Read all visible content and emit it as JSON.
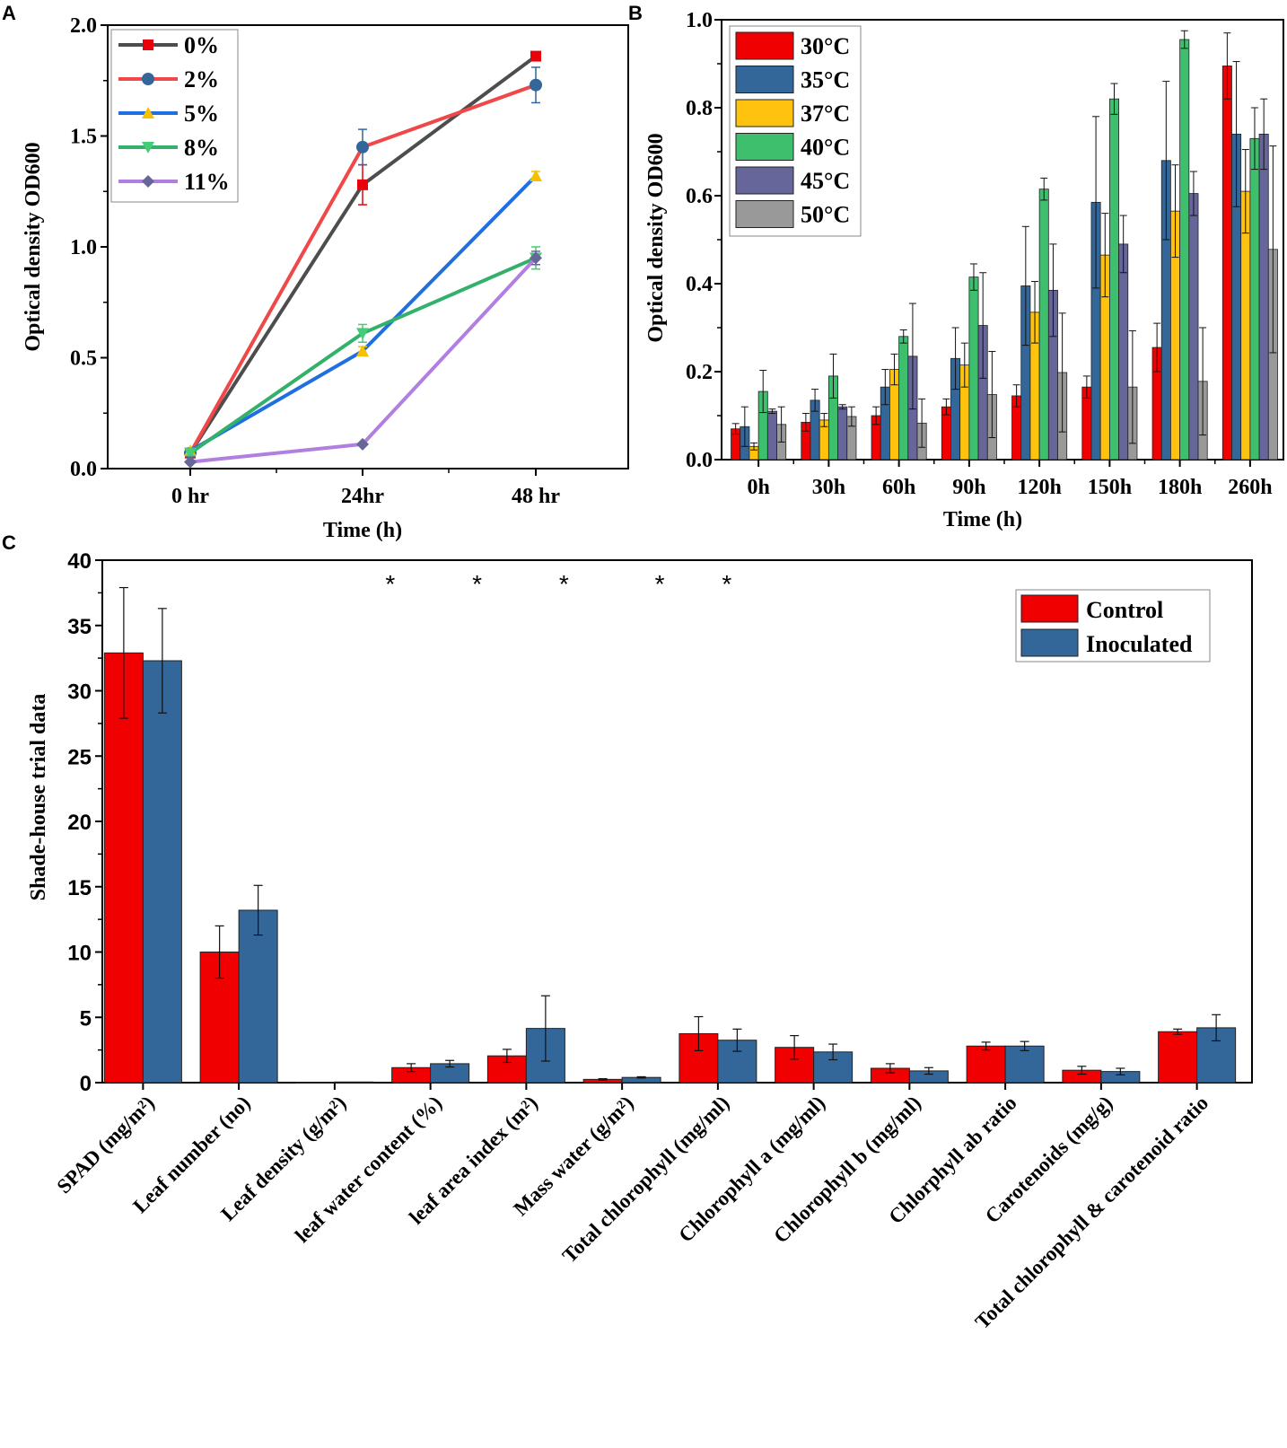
{
  "chart_data": [
    {
      "panel": "A",
      "type": "line",
      "title": "",
      "xlabel": "Time (h)",
      "ylabel": "Optical density OD600",
      "categories": [
        "0 hr",
        "24hr",
        "48 hr"
      ],
      "ylim": [
        0,
        2.0
      ],
      "yticks": [
        "0.0",
        "0.5",
        "1.0",
        "1.5",
        "2.0"
      ],
      "legend_position": "top-left",
      "series": [
        {
          "name": "0%",
          "line_color": "#4d4d4d",
          "marker_color": "#e8000b",
          "marker": "square",
          "values": [
            0.07,
            1.28,
            1.86
          ],
          "errors": [
            0.01,
            0.09,
            0.0
          ]
        },
        {
          "name": "2%",
          "line_color": "#f04848",
          "marker_color": "#336699",
          "marker": "circle",
          "values": [
            0.07,
            1.45,
            1.73
          ],
          "errors": [
            0.01,
            0.08,
            0.08
          ]
        },
        {
          "name": "5%",
          "line_color": "#1f6fe0",
          "marker_color": "#f5c000",
          "marker": "triangle-up",
          "values": [
            0.08,
            0.53,
            1.32
          ],
          "errors": [
            0.01,
            0.02,
            0.02
          ]
        },
        {
          "name": "8%",
          "line_color": "#33b06a",
          "marker_color": "#44cc77",
          "marker": "triangle-down",
          "values": [
            0.07,
            0.61,
            0.95
          ],
          "errors": [
            0.01,
            0.04,
            0.05
          ]
        },
        {
          "name": "11%",
          "line_color": "#b07fe0",
          "marker_color": "#666699",
          "marker": "diamond",
          "values": [
            0.03,
            0.11,
            0.95
          ],
          "errors": [
            0.0,
            0.0,
            0.03
          ]
        }
      ]
    },
    {
      "panel": "B",
      "type": "bar",
      "title": "",
      "xlabel": "Time (h)",
      "ylabel": "Optical density OD600",
      "categories": [
        "0h",
        "30h",
        "60h",
        "90h",
        "120h",
        "150h",
        "180h",
        "260h"
      ],
      "ylim": [
        0,
        1.0
      ],
      "yticks": [
        "0.0",
        "0.2",
        "0.4",
        "0.6",
        "0.8",
        "1.0"
      ],
      "legend_position": "top-left",
      "series": [
        {
          "name": "30°C",
          "color": "#f00000",
          "values": [
            0.07,
            0.085,
            0.1,
            0.12,
            0.145,
            0.165,
            0.255,
            0.895
          ],
          "errors": [
            0.012,
            0.02,
            0.02,
            0.018,
            0.025,
            0.025,
            0.055,
            0.075
          ]
        },
        {
          "name": "35°C",
          "color": "#336699",
          "values": [
            0.075,
            0.135,
            0.165,
            0.23,
            0.395,
            0.585,
            0.68,
            0.74
          ],
          "errors": [
            0.045,
            0.025,
            0.04,
            0.07,
            0.135,
            0.195,
            0.18,
            0.165
          ]
        },
        {
          "name": "37°C",
          "color": "#ffc20e",
          "values": [
            0.03,
            0.09,
            0.205,
            0.215,
            0.335,
            0.465,
            0.565,
            0.61
          ],
          "errors": [
            0.008,
            0.015,
            0.035,
            0.05,
            0.07,
            0.095,
            0.105,
            0.095
          ]
        },
        {
          "name": "40°C",
          "color": "#3dbf6e",
          "values": [
            0.155,
            0.19,
            0.28,
            0.415,
            0.615,
            0.82,
            0.955,
            0.73
          ],
          "errors": [
            0.048,
            0.05,
            0.015,
            0.03,
            0.025,
            0.035,
            0.02,
            0.07
          ]
        },
        {
          "name": "45°C",
          "color": "#66669a",
          "values": [
            0.11,
            0.12,
            0.235,
            0.305,
            0.385,
            0.49,
            0.605,
            0.74
          ],
          "errors": [
            0.005,
            0.005,
            0.12,
            0.12,
            0.105,
            0.065,
            0.05,
            0.08
          ]
        },
        {
          "name": "50°C",
          "color": "#999999",
          "values": [
            0.08,
            0.098,
            0.083,
            0.148,
            0.198,
            0.165,
            0.178,
            0.478
          ],
          "errors": [
            0.04,
            0.022,
            0.055,
            0.098,
            0.135,
            0.128,
            0.122,
            0.235
          ]
        }
      ]
    },
    {
      "panel": "C",
      "type": "bar",
      "title": "",
      "xlabel": "",
      "ylabel": "Shade-house trial data",
      "categories": [
        "SPAD (mg/m²)",
        "Leaf number (no)",
        "Leaf density (g/m²)",
        "leaf water content (%)",
        "leaf area index (m²)",
        "Mass water (g/m²)",
        "Total chlorophyll (mg/ml)",
        "Chlorophyll a (mg/ml)",
        "Chlorophyll b (mg/ml)",
        "Chlorphyll ab ratio",
        "Carotenoids (mg/g)",
        "Total chlorophyll &  carotenoid ratio"
      ],
      "ylim": [
        0,
        40
      ],
      "yticks": [
        "0",
        "5",
        "10",
        "15",
        "20",
        "25",
        "30",
        "35",
        "40"
      ],
      "legend_position": "top-right",
      "significance_marks": [
        "",
        "",
        "*",
        "*",
        "*",
        "*",
        "*",
        "",
        "",
        "",
        "",
        ""
      ],
      "series": [
        {
          "name": "Control",
          "color": "#f00000",
          "values": [
            32.9,
            10.0,
            0.02,
            1.15,
            2.05,
            0.25,
            3.75,
            2.7,
            1.1,
            2.8,
            0.95,
            3.9
          ],
          "errors": [
            5.0,
            2.0,
            0.0,
            0.3,
            0.5,
            0.05,
            1.3,
            0.9,
            0.35,
            0.3,
            0.3,
            0.2
          ]
        },
        {
          "name": "Inoculated",
          "color": "#336699",
          "values": [
            32.3,
            13.2,
            0.05,
            1.45,
            4.15,
            0.4,
            3.25,
            2.35,
            0.9,
            2.8,
            0.85,
            4.2
          ],
          "errors": [
            4.0,
            1.9,
            0.0,
            0.25,
            2.5,
            0.05,
            0.85,
            0.6,
            0.25,
            0.35,
            0.25,
            1.0
          ]
        }
      ]
    }
  ],
  "panels": {
    "A": {
      "letter": "A"
    },
    "B": {
      "letter": "B"
    },
    "C": {
      "letter": "C"
    }
  }
}
